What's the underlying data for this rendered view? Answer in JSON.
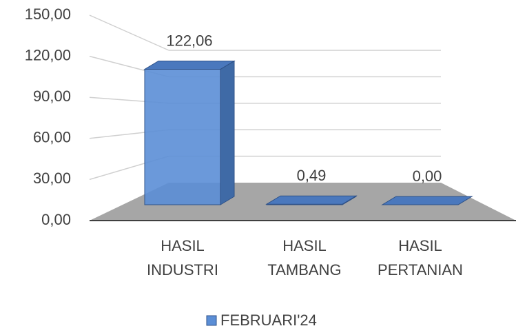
{
  "chart_data": {
    "type": "bar3d",
    "categories": [
      "HASIL INDUSTRI",
      "HASIL TAMBANG",
      "HASIL PERTANIAN"
    ],
    "series": [
      {
        "name": "FEBRUARI'24",
        "color": "#5b8ed6",
        "values": [
          122.06,
          0.49,
          0.0
        ],
        "value_labels": [
          "122,06",
          "0,49",
          "0,00"
        ]
      }
    ],
    "ylim": [
      0,
      150
    ],
    "yticks": [
      {
        "value": 0,
        "label": "0,00"
      },
      {
        "value": 30,
        "label": "30,00"
      },
      {
        "value": 60,
        "label": "60,00"
      },
      {
        "value": 90,
        "label": "90,00"
      },
      {
        "value": 120,
        "label": "120,00"
      },
      {
        "value": 150,
        "label": "150,00"
      }
    ],
    "grid": true,
    "legend": "bottom"
  }
}
